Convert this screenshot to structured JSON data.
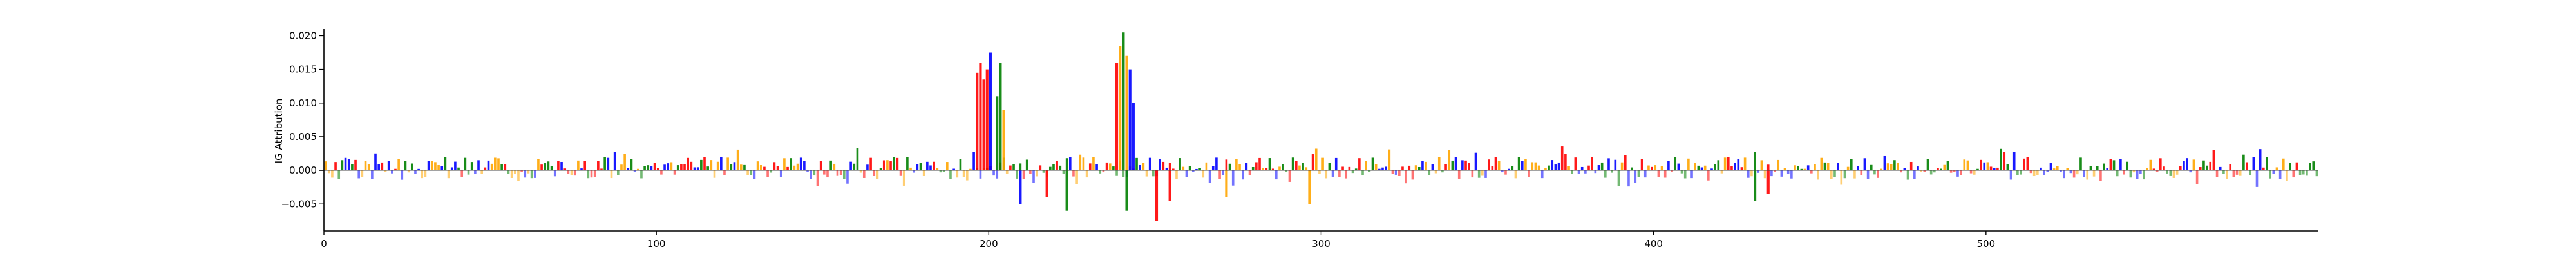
{
  "chart_data": {
    "type": "bar",
    "title": "",
    "xlabel": "",
    "ylabel": "IG Attribution",
    "xlim": [
      0,
      600
    ],
    "ylim": [
      -0.009,
      0.021
    ],
    "x_ticks": [
      0,
      100,
      200,
      300,
      400,
      500
    ],
    "y_ticks": [
      -0.005,
      0.0,
      0.005,
      0.01,
      0.015,
      0.02
    ],
    "y_tick_labels": [
      "−0.005",
      "0.000",
      "0.005",
      "0.010",
      "0.015",
      "0.020"
    ],
    "grid": false,
    "base_colors": {
      "A": "#008000",
      "C": "#0000ff",
      "G": "#ffa500",
      "T": "#ff0000"
    },
    "peaks": [
      {
        "x": 196,
        "value": 0.0145,
        "base": "T"
      },
      {
        "x": 197,
        "value": 0.016,
        "base": "T"
      },
      {
        "x": 198,
        "value": 0.0135,
        "base": "T"
      },
      {
        "x": 199,
        "value": 0.015,
        "base": "T"
      },
      {
        "x": 200,
        "value": 0.0175,
        "base": "C"
      },
      {
        "x": 202,
        "value": 0.011,
        "base": "A"
      },
      {
        "x": 203,
        "value": 0.016,
        "base": "A"
      },
      {
        "x": 204,
        "value": 0.009,
        "base": "G"
      },
      {
        "x": 209,
        "value": -0.005,
        "base": "C"
      },
      {
        "x": 217,
        "value": -0.004,
        "base": "T"
      },
      {
        "x": 223,
        "value": -0.006,
        "base": "A"
      },
      {
        "x": 238,
        "value": 0.016,
        "base": "T"
      },
      {
        "x": 239,
        "value": 0.0185,
        "base": "G"
      },
      {
        "x": 240,
        "value": 0.0205,
        "base": "A"
      },
      {
        "x": 241,
        "value": 0.017,
        "base": "G"
      },
      {
        "x": 242,
        "value": 0.015,
        "base": "C"
      },
      {
        "x": 243,
        "value": 0.01,
        "base": "C"
      },
      {
        "x": 241,
        "value": -0.006,
        "base": "A"
      },
      {
        "x": 250,
        "value": -0.0075,
        "base": "T"
      },
      {
        "x": 254,
        "value": -0.0045,
        "base": "T"
      },
      {
        "x": 271,
        "value": -0.004,
        "base": "G"
      },
      {
        "x": 296,
        "value": -0.005,
        "base": "G"
      },
      {
        "x": 430,
        "value": -0.0045,
        "base": "A"
      },
      {
        "x": 434,
        "value": -0.0035,
        "base": "T"
      }
    ]
  }
}
